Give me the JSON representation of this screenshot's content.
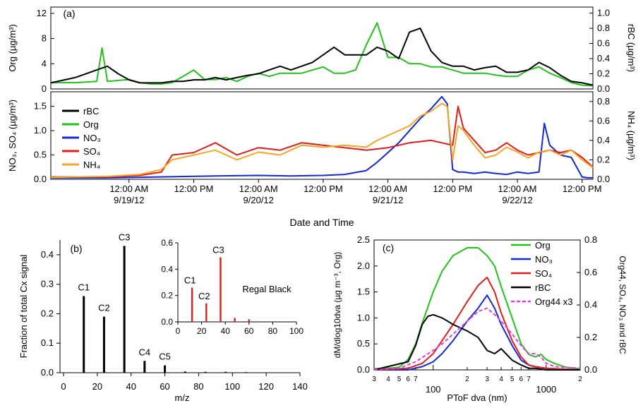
{
  "colors": {
    "rBC": "#000000",
    "Org": "#22c21b",
    "NO3": "#1428d8",
    "SO4": "#e21b1b",
    "NH4": "#f5a623",
    "Org44": "#e040e0"
  },
  "chart_data": [
    {
      "id": "a_top",
      "type": "line",
      "panel_label": "(a)",
      "ylabel": "Org (µg/m³)",
      "y2label": "rBC (µg/m³)",
      "ylim": [
        0,
        13
      ],
      "y2lim": [
        0,
        1.08
      ],
      "yticks": [
        "0",
        "4",
        "8",
        "12"
      ],
      "y2ticks": [
        "0.0",
        "0.2",
        "0.4",
        "0.6",
        "0.8",
        "1.0"
      ],
      "x_unit": "hours since 9/18/12 00:00",
      "xlim": [
        9.5,
        110
      ],
      "series": [
        {
          "name": "Org",
          "axis": "left",
          "color_key": "Org",
          "x": [
            9.5,
            14,
            18,
            19,
            20,
            24,
            26,
            28,
            30,
            32,
            34,
            36,
            38,
            40,
            42,
            44,
            46,
            48,
            50,
            52,
            54,
            56,
            58,
            60,
            62,
            64,
            66,
            68,
            70,
            72,
            74,
            76,
            78,
            80,
            82,
            84,
            86,
            88,
            90,
            92,
            94,
            96,
            98,
            100,
            102,
            104,
            106,
            108,
            110
          ],
          "y": [
            1.0,
            1.0,
            1.2,
            6.5,
            1.2,
            1.5,
            1.0,
            0.8,
            0.8,
            1.0,
            2.0,
            3.0,
            1.5,
            1.5,
            1.8,
            1.2,
            2.0,
            2.5,
            2.0,
            2.5,
            2.5,
            2.5,
            3.0,
            3.5,
            2.5,
            2.5,
            3.0,
            7.0,
            10.5,
            5.0,
            5.0,
            4.0,
            4.0,
            3.5,
            3.5,
            3.0,
            2.5,
            2.5,
            2.5,
            2.2,
            2.0,
            2.0,
            3.0,
            3.5,
            2.5,
            1.8,
            1.0,
            0.6,
            0.5
          ]
        },
        {
          "name": "rBC",
          "axis": "right",
          "color_key": "rBC",
          "x": [
            9.5,
            14,
            18,
            20,
            22,
            24,
            26,
            28,
            30,
            32,
            34,
            36,
            38,
            40,
            42,
            44,
            46,
            48,
            50,
            52,
            54,
            56,
            58,
            60,
            62,
            64,
            66,
            68,
            70,
            72,
            74,
            76,
            78,
            80,
            82,
            84,
            86,
            88,
            90,
            92,
            94,
            96,
            98,
            100,
            102,
            104,
            106,
            108,
            110
          ],
          "y": [
            0.08,
            0.15,
            0.25,
            0.3,
            0.2,
            0.12,
            0.08,
            0.08,
            0.08,
            0.1,
            0.1,
            0.12,
            0.12,
            0.15,
            0.12,
            0.15,
            0.18,
            0.2,
            0.25,
            0.3,
            0.25,
            0.3,
            0.35,
            0.45,
            0.55,
            0.45,
            0.45,
            0.45,
            0.55,
            0.5,
            0.4,
            0.75,
            0.8,
            0.5,
            0.35,
            0.3,
            0.3,
            0.25,
            0.28,
            0.3,
            0.22,
            0.22,
            0.25,
            0.35,
            0.28,
            0.18,
            0.1,
            0.08,
            0.05
          ]
        }
      ]
    },
    {
      "id": "a_bottom",
      "type": "line",
      "ylabel": "NO₃, SO₄ (µg/m³)",
      "y2label": "NH₄ (µg/m³)",
      "ylim": [
        0,
        1.8
      ],
      "y2lim": [
        0,
        0.9
      ],
      "yticks": [
        "0.0",
        "0.5",
        "1.0",
        "1.5"
      ],
      "y2ticks": [
        "0.0",
        "0.2",
        "0.4",
        "0.6",
        "0.8"
      ],
      "xlabel": "Date and Time",
      "xticks": [
        {
          "x": 24,
          "line1": "12:00 AM",
          "line2": "9/19/12"
        },
        {
          "x": 36,
          "line1": "12:00 PM",
          "line2": ""
        },
        {
          "x": 48,
          "line1": "12:00 AM",
          "line2": "9/20/12"
        },
        {
          "x": 60,
          "line1": "12:00 PM",
          "line2": ""
        },
        {
          "x": 72,
          "line1": "12:00 AM",
          "line2": "9/21/12"
        },
        {
          "x": 84,
          "line1": "12:00 PM",
          "line2": ""
        },
        {
          "x": 96,
          "line1": "12:00 AM",
          "line2": "9/22/12"
        },
        {
          "x": 108,
          "line1": "12:00 PM",
          "line2": ""
        }
      ],
      "legend": [
        "rBC",
        "Org",
        "NO₃",
        "SO₄",
        "NH₄"
      ],
      "series": [
        {
          "name": "NO₃",
          "axis": "left",
          "color_key": "NO3",
          "x": [
            9.5,
            20,
            30,
            40,
            48,
            54,
            60,
            64,
            68,
            70,
            72,
            74,
            76,
            78,
            80,
            82,
            83,
            84,
            85,
            86,
            88,
            90,
            92,
            94,
            96,
            98,
            100,
            101,
            102,
            104,
            106,
            108,
            109,
            110
          ],
          "y": [
            0.03,
            0.03,
            0.05,
            0.07,
            0.08,
            0.07,
            0.08,
            0.1,
            0.18,
            0.35,
            0.55,
            0.75,
            1.0,
            1.25,
            1.45,
            1.7,
            1.55,
            0.2,
            0.15,
            0.15,
            0.12,
            0.15,
            0.12,
            0.1,
            0.15,
            0.12,
            0.15,
            1.15,
            0.7,
            0.5,
            0.45,
            0.05,
            0.03,
            0.03
          ]
        },
        {
          "name": "SO₄",
          "axis": "left",
          "color_key": "SO4",
          "x": [
            9.5,
            20,
            26,
            30,
            32,
            36,
            40,
            44,
            48,
            52,
            56,
            60,
            64,
            68,
            72,
            76,
            80,
            82,
            84,
            85,
            86,
            88,
            90,
            92,
            94,
            96,
            98,
            100,
            102,
            104,
            106,
            108,
            110
          ],
          "y": [
            0.05,
            0.05,
            0.08,
            0.15,
            0.5,
            0.55,
            0.75,
            0.5,
            0.65,
            0.6,
            0.75,
            0.7,
            0.65,
            0.6,
            0.65,
            0.75,
            0.8,
            0.75,
            0.7,
            1.5,
            1.05,
            0.8,
            0.55,
            0.6,
            0.75,
            0.6,
            0.5,
            0.55,
            0.6,
            0.55,
            0.6,
            0.45,
            0.25
          ]
        },
        {
          "name": "NH₄",
          "axis": "right",
          "color_key": "NH4",
          "x": [
            9.5,
            20,
            26,
            30,
            32,
            36,
            40,
            44,
            48,
            52,
            56,
            60,
            64,
            68,
            70,
            72,
            74,
            76,
            78,
            80,
            82,
            83,
            84,
            85,
            86,
            88,
            90,
            92,
            94,
            96,
            98,
            100,
            102,
            104,
            106,
            108,
            110
          ],
          "y": [
            0.02,
            0.03,
            0.05,
            0.1,
            0.2,
            0.25,
            0.3,
            0.2,
            0.28,
            0.25,
            0.35,
            0.33,
            0.35,
            0.33,
            0.4,
            0.45,
            0.5,
            0.55,
            0.65,
            0.7,
            0.78,
            0.75,
            0.2,
            0.55,
            0.5,
            0.35,
            0.22,
            0.25,
            0.33,
            0.28,
            0.22,
            0.28,
            0.3,
            0.25,
            0.3,
            0.2,
            0.12
          ]
        }
      ]
    },
    {
      "id": "b",
      "type": "bar",
      "panel_label": "(b)",
      "xlabel": "m/z",
      "ylabel": "Fraction of total Cx signal",
      "xlim": [
        -2,
        140
      ],
      "ylim": [
        0,
        0.45
      ],
      "xticks": [
        "0",
        "20",
        "40",
        "60",
        "80",
        "100",
        "120",
        "140"
      ],
      "yticks": [
        "0.0",
        "0.1",
        "0.2",
        "0.3",
        "0.4"
      ],
      "x": [
        12,
        24,
        36,
        48,
        60,
        72,
        84,
        96,
        108
      ],
      "values": [
        0.26,
        0.19,
        0.43,
        0.04,
        0.025,
        0.004,
        0.003,
        0.003,
        0.002
      ],
      "bar_labels": [
        "C1",
        "C2",
        "C3",
        "C4",
        "C5",
        "",
        "",
        "",
        ""
      ]
    },
    {
      "id": "b_inset",
      "type": "bar",
      "title": "Regal Black",
      "xlim": [
        0,
        100
      ],
      "ylim": [
        0,
        0.6
      ],
      "xticks": [
        "0",
        "20",
        "40",
        "60",
        "80",
        "100"
      ],
      "yticks": [
        "0.0",
        "0.2",
        "0.4",
        "0.6"
      ],
      "x": [
        12,
        24,
        36,
        48,
        60
      ],
      "values": [
        0.26,
        0.14,
        0.49,
        0.03,
        0.02
      ],
      "bar_labels": [
        "C1",
        "C2",
        "C3",
        "",
        ""
      ]
    },
    {
      "id": "c",
      "type": "line",
      "panel_label": "(c)",
      "xlabel": "PToF dva (nm)",
      "ylabel": "dM/dlog10dva (µg m⁻³, Org)",
      "y2label": "Org44, SO₄, NO₃ and rBC",
      "xscale": "log",
      "xlim": [
        30,
        2000
      ],
      "ylim": [
        0,
        2.5
      ],
      "y2lim": [
        0,
        0.8
      ],
      "xticks_major": [
        "100",
        "1000"
      ],
      "xticks_minor": [
        "3",
        "4",
        "5",
        "6",
        "7",
        "2",
        "3",
        "4",
        "5",
        "6",
        "7",
        "2"
      ],
      "yticks": [
        "0.0",
        "0.5",
        "1.0",
        "1.5",
        "2.0",
        "2.5"
      ],
      "y2ticks": [
        "0.0",
        "0.2",
        "0.4",
        "0.6",
        "0.8"
      ],
      "legend": [
        "Org",
        "NO₃",
        "SO₄",
        "rBC",
        "Org44 x3"
      ],
      "series": [
        {
          "name": "Org",
          "axis": "left",
          "color_key": "Org",
          "x": [
            30,
            40,
            50,
            60,
            70,
            80,
            100,
            120,
            150,
            200,
            250,
            300,
            350,
            400,
            500,
            600,
            700,
            800,
            900,
            1000,
            1200,
            1500,
            2000
          ],
          "y": [
            0.02,
            0.03,
            0.05,
            0.2,
            0.5,
            0.9,
            1.5,
            1.9,
            2.2,
            2.35,
            2.35,
            2.2,
            2.0,
            1.6,
            1.0,
            0.5,
            0.3,
            0.25,
            0.3,
            0.2,
            0.12,
            0.05,
            0.02
          ]
        },
        {
          "name": "NO₃",
          "axis": "right",
          "color_key": "NO3",
          "x": [
            30,
            60,
            80,
            100,
            120,
            150,
            200,
            250,
            300,
            350,
            400,
            500,
            600,
            700,
            800,
            1000,
            2000
          ],
          "y": [
            0.0,
            0.0,
            0.02,
            0.05,
            0.1,
            0.18,
            0.3,
            0.38,
            0.46,
            0.38,
            0.28,
            0.15,
            0.06,
            0.03,
            0.02,
            0.01,
            0.0
          ]
        },
        {
          "name": "SO₄",
          "axis": "right",
          "color_key": "SO4",
          "x": [
            30,
            60,
            80,
            100,
            120,
            150,
            200,
            250,
            300,
            350,
            400,
            500,
            600,
            700,
            800,
            1000,
            2000
          ],
          "y": [
            0.0,
            0.01,
            0.04,
            0.1,
            0.18,
            0.28,
            0.42,
            0.52,
            0.57,
            0.48,
            0.35,
            0.18,
            0.08,
            0.03,
            0.02,
            0.01,
            0.0
          ]
        },
        {
          "name": "rBC",
          "axis": "right",
          "color_key": "rBC",
          "x": [
            30,
            60,
            70,
            80,
            90,
            100,
            120,
            150,
            200,
            250,
            300,
            350,
            400,
            500,
            600,
            700,
            800,
            1000,
            2000
          ],
          "y": [
            0.0,
            0.05,
            0.15,
            0.28,
            0.33,
            0.34,
            0.32,
            0.28,
            0.24,
            0.2,
            0.12,
            0.1,
            0.13,
            0.06,
            0.03,
            0.01,
            0.01,
            0.0,
            0.0
          ]
        },
        {
          "name": "Org44 x3",
          "axis": "right",
          "color_key": "Org44",
          "dashed": true,
          "x": [
            30,
            50,
            70,
            100,
            120,
            150,
            200,
            250,
            300,
            350,
            400,
            500,
            600,
            700,
            800,
            900,
            1000,
            1200,
            2000
          ],
          "y": [
            0.0,
            0.01,
            0.05,
            0.12,
            0.16,
            0.22,
            0.3,
            0.36,
            0.38,
            0.34,
            0.3,
            0.22,
            0.15,
            0.1,
            0.1,
            0.08,
            0.04,
            0.02,
            0.01
          ]
        }
      ]
    }
  ]
}
